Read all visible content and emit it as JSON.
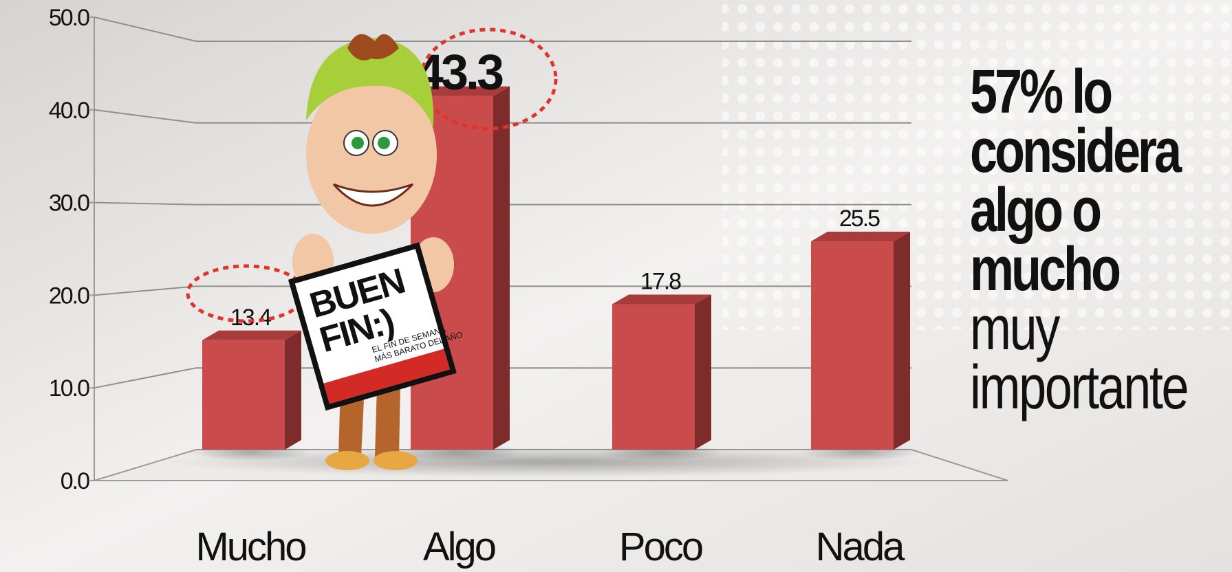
{
  "chart_data": {
    "type": "bar3d",
    "categories": [
      "Mucho",
      "Algo",
      "Poco",
      "Nada"
    ],
    "values": [
      13.4,
      43.3,
      17.8,
      25.5
    ],
    "color": "#c94b4b",
    "ylim": [
      0,
      50
    ],
    "yticks": [
      {
        "value": 0,
        "label": "0.0"
      },
      {
        "value": 10,
        "label": "10.0"
      },
      {
        "value": 20,
        "label": "20.0"
      },
      {
        "value": 30,
        "label": "30.0"
      },
      {
        "value": 40,
        "label": "40.0"
      },
      {
        "value": 50,
        "label": "50.0"
      }
    ],
    "grid": true,
    "annotation": {
      "bold": [
        "57% lo",
        "considera",
        "algo o",
        "mucho"
      ],
      "light": [
        "muy",
        "importante"
      ]
    }
  },
  "logo": {
    "lines": [
      "BUEN",
      "FIN:)"
    ],
    "tagline": [
      "EL FIN DE SEMANA",
      "MÁS BARATO DEL AÑO"
    ]
  }
}
